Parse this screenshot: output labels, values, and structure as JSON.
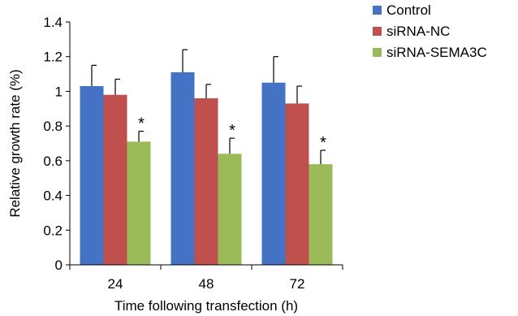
{
  "chart_data": {
    "type": "bar",
    "xlabel": "Time following transfection (h)",
    "ylabel": "Relative growth rate (%)",
    "categories": [
      "24",
      "48",
      "72"
    ],
    "ylim": [
      0,
      1.4
    ],
    "yticks": [
      "0",
      "0.2",
      "0.4",
      "0.6",
      "0.8",
      "1",
      "1.2",
      "1.4"
    ],
    "grid": false,
    "legend_position": "top-right",
    "series": [
      {
        "name": "Control",
        "color": "#4472C4",
        "values": [
          1.03,
          1.11,
          1.05
        ],
        "errors": [
          0.12,
          0.13,
          0.15
        ]
      },
      {
        "name": "siRNA-NC",
        "color": "#C0504D",
        "values": [
          0.98,
          0.96,
          0.93
        ],
        "errors": [
          0.09,
          0.08,
          0.1
        ]
      },
      {
        "name": "siRNA-SEMA3C",
        "color": "#9BBB59",
        "values": [
          0.71,
          0.64,
          0.58
        ],
        "errors": [
          0.06,
          0.09,
          0.08
        ]
      }
    ],
    "annotations": [
      {
        "text": "*",
        "series": "siRNA-SEMA3C",
        "category": "24"
      },
      {
        "text": "*",
        "series": "siRNA-SEMA3C",
        "category": "48"
      },
      {
        "text": "*",
        "series": "siRNA-SEMA3C",
        "category": "72"
      }
    ]
  }
}
